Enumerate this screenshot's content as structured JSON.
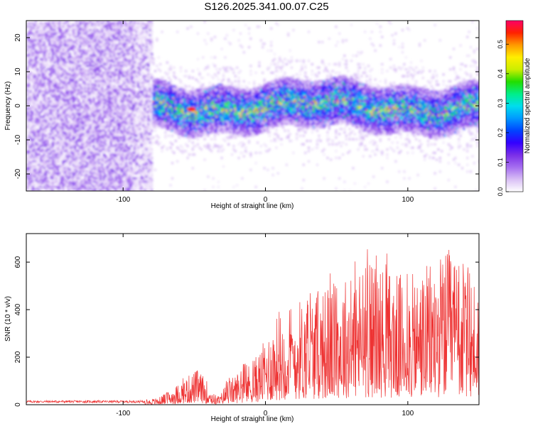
{
  "title": "S126.2025.341.00.07.C25",
  "chart_data": [
    {
      "type": "heatmap",
      "name": "spectrogram",
      "xlabel": "Height of straight line (km)",
      "ylabel": "Frequency (Hz)",
      "xlim": [
        -168,
        150
      ],
      "ylim": [
        -25,
        25
      ],
      "xticks": [
        -100,
        0,
        100
      ],
      "yticks": [
        -20,
        -10,
        0,
        10,
        20
      ],
      "noise_region_x": [
        -168,
        -80
      ],
      "signal_band_center": 0,
      "signal_band_halfwidth_hz": 7,
      "peak": {
        "x": -52,
        "y": -1,
        "value": 0.55
      },
      "colorbar": {
        "label": "Normalized spectral amplitude",
        "range": [
          0.0,
          0.58
        ],
        "ticks": [
          0.0,
          0.1,
          0.2,
          0.3,
          0.4,
          0.5
        ],
        "colors": [
          "#ffffff",
          "#d9bff5",
          "#a66ef0",
          "#7a2fe8",
          "#3300ff",
          "#0044ff",
          "#0099ff",
          "#00ddee",
          "#00ee88",
          "#22dd00",
          "#ccee00",
          "#ffee00",
          "#ff9900",
          "#ff2200",
          "#ff0066"
        ]
      }
    },
    {
      "type": "line",
      "name": "snr",
      "xlabel": "Height of straight line (km)",
      "ylabel": "SNR (10 * v/v)",
      "xlim": [
        -168,
        150
      ],
      "ylim": [
        0,
        720
      ],
      "xticks": [
        -100,
        0,
        100
      ],
      "yticks": [
        0,
        200,
        400,
        600
      ],
      "color": "#ee3333",
      "envelope": {
        "x": [
          -168,
          -100,
          -85,
          -75,
          -65,
          -55,
          -48,
          -42,
          -36,
          -32,
          -28,
          -24,
          -18,
          -12,
          -6,
          0,
          6,
          12,
          20,
          30,
          40,
          50,
          60,
          70,
          80,
          90,
          100,
          110,
          120,
          130,
          140,
          150
        ],
        "y": [
          14,
          14,
          18,
          30,
          70,
          120,
          150,
          110,
          45,
          35,
          95,
          110,
          150,
          170,
          210,
          280,
          360,
          400,
          440,
          460,
          500,
          520,
          560,
          600,
          600,
          560,
          540,
          570,
          620,
          660,
          600,
          520
        ]
      }
    }
  ]
}
